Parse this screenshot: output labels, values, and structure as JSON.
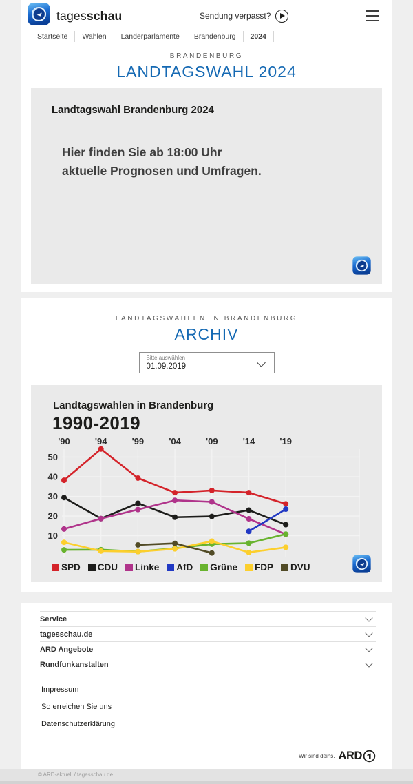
{
  "header": {
    "brand_regular": "tages",
    "brand_bold": "schau",
    "missed_label": "Sendung verpasst?"
  },
  "breadcrumb": {
    "items": [
      {
        "label": "Startseite",
        "bold": false
      },
      {
        "label": "Wahlen",
        "bold": false
      },
      {
        "label": "Länderparlamente",
        "bold": false
      },
      {
        "label": "Brandenburg",
        "bold": false
      },
      {
        "label": "2024",
        "bold": true
      }
    ]
  },
  "election": {
    "kicker": "BRANDENBURG",
    "title": "LANDTAGSWAHL 2024",
    "widget_title": "Landtagswahl Brandenburg 2024",
    "widget_line1": "Hier finden Sie ab 18:00 Uhr",
    "widget_line2": "aktuelle Prognosen und Umfragen."
  },
  "archive": {
    "kicker": "LANDTAGSWAHLEN IN BRANDENBURG",
    "title": "ARCHIV",
    "dropdown_label": "Bitte auswählen",
    "dropdown_value": "01.09.2019"
  },
  "chart_data": {
    "type": "line",
    "title": "Landtagswahlen in Brandenburg",
    "subtitle": "1990-2019",
    "x": [
      1990,
      1994,
      1999,
      2004,
      2009,
      2014,
      2019
    ],
    "x_labels": [
      "'90",
      "'94",
      "'99",
      "'04",
      "'09",
      "'14",
      "'19"
    ],
    "y_ticks": [
      10,
      20,
      30,
      40,
      50
    ],
    "ylim": [
      0,
      57
    ],
    "grid": true,
    "legend_position": "bottom",
    "series": [
      {
        "name": "SPD",
        "color": "#d4232a",
        "values": [
          38.2,
          54.1,
          39.3,
          31.9,
          33.0,
          31.9,
          26.2
        ]
      },
      {
        "name": "CDU",
        "color": "#1d1d1b",
        "values": [
          29.4,
          18.7,
          26.5,
          19.4,
          19.8,
          23.0,
          15.6
        ]
      },
      {
        "name": "Linke",
        "color": "#b0348b",
        "values": [
          13.4,
          18.7,
          23.3,
          28.0,
          27.2,
          18.6,
          10.7
        ]
      },
      {
        "name": "AfD",
        "color": "#2239c4",
        "values": [
          null,
          null,
          null,
          null,
          null,
          12.2,
          23.5
        ]
      },
      {
        "name": "Grüne",
        "color": "#68b32e",
        "values": [
          2.8,
          2.9,
          1.9,
          3.6,
          5.7,
          6.2,
          10.8
        ]
      },
      {
        "name": "FDP",
        "color": "#fccf2d",
        "values": [
          6.6,
          2.2,
          1.9,
          3.3,
          7.2,
          1.5,
          4.1
        ]
      },
      {
        "name": "DVU",
        "color": "#514b26",
        "values": [
          null,
          null,
          5.3,
          6.1,
          1.2,
          null,
          null
        ]
      }
    ]
  },
  "footer": {
    "accordion": [
      "Service",
      "tagesschau.de",
      "ARD Angebote",
      "Rundfunkanstalten"
    ],
    "links": [
      "Impressum",
      "So erreichen Sie uns",
      "Datenschutzerklärung"
    ],
    "tagline": "Wir sind deins.",
    "brand": "ARD",
    "copyright": "© ARD-aktuell / tagesschau.de"
  },
  "colors": {
    "accent_blue": "#1569b3",
    "widget_gray": "#eaeaea"
  }
}
